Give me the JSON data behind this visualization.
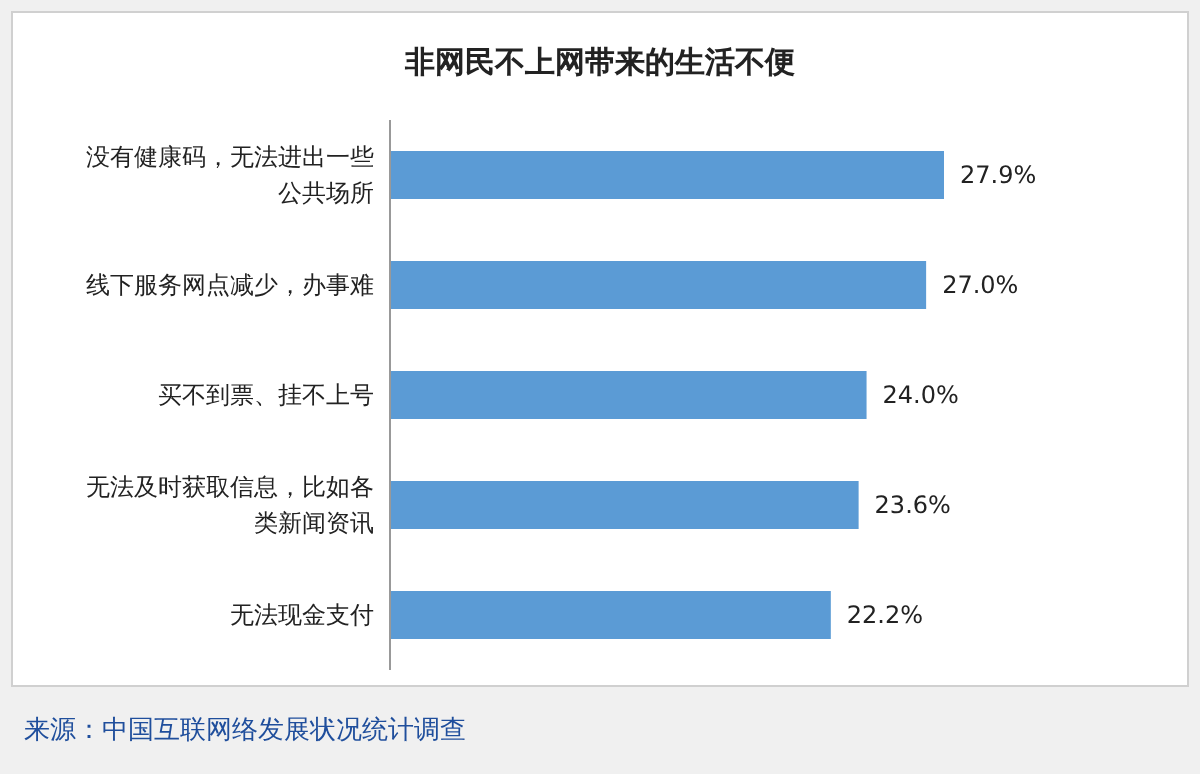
{
  "chart_data": {
    "type": "bar",
    "orientation": "horizontal",
    "title": "非网民不上网带来的生活不便",
    "categories": [
      "没有健康码，无法进出一些公共场所",
      "线下服务网点减少，办事难",
      "买不到票、挂不上号",
      "无法及时获取信息，比如各类新闻资讯",
      "无法现金支付"
    ],
    "values": [
      27.9,
      27.0,
      24.0,
      23.6,
      22.2
    ],
    "value_labels": [
      "27.9%",
      "27.0%",
      "24.0%",
      "23.6%",
      "22.2%"
    ],
    "color": "#5b9bd5",
    "annotations": [
      "来源：中国互联网络发展状况统计调查"
    ]
  }
}
